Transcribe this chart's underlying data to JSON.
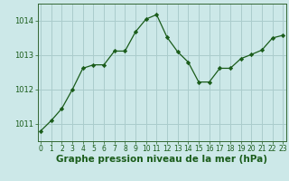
{
  "x": [
    0,
    1,
    2,
    3,
    4,
    5,
    6,
    7,
    8,
    9,
    10,
    11,
    12,
    13,
    14,
    15,
    16,
    17,
    18,
    19,
    20,
    21,
    22,
    23
  ],
  "y": [
    1010.8,
    1011.1,
    1011.45,
    1012.0,
    1012.62,
    1012.72,
    1012.72,
    1013.12,
    1013.12,
    1013.68,
    1014.05,
    1014.18,
    1013.52,
    1013.1,
    1012.8,
    1012.22,
    1012.22,
    1012.62,
    1012.62,
    1012.9,
    1013.02,
    1013.15,
    1013.5,
    1013.58
  ],
  "line_color": "#1a5c1a",
  "marker": "D",
  "marker_size": 2.2,
  "bg_color": "#cce8e8",
  "grid_color": "#aacccc",
  "xlabel": "Graphe pression niveau de la mer (hPa)",
  "xlabel_color": "#1a5c1a",
  "xlabel_fontsize": 7.5,
  "yticks": [
    1011,
    1012,
    1013,
    1014
  ],
  "xticks": [
    0,
    1,
    2,
    3,
    4,
    5,
    6,
    7,
    8,
    9,
    10,
    11,
    12,
    13,
    14,
    15,
    16,
    17,
    18,
    19,
    20,
    21,
    22,
    23
  ],
  "ylim": [
    1010.5,
    1014.5
  ],
  "xlim": [
    -0.3,
    23.3
  ],
  "tick_color": "#1a5c1a",
  "ytick_fontsize": 6.0,
  "xtick_fontsize": 5.5,
  "spine_color": "#336633",
  "linewidth": 0.9
}
